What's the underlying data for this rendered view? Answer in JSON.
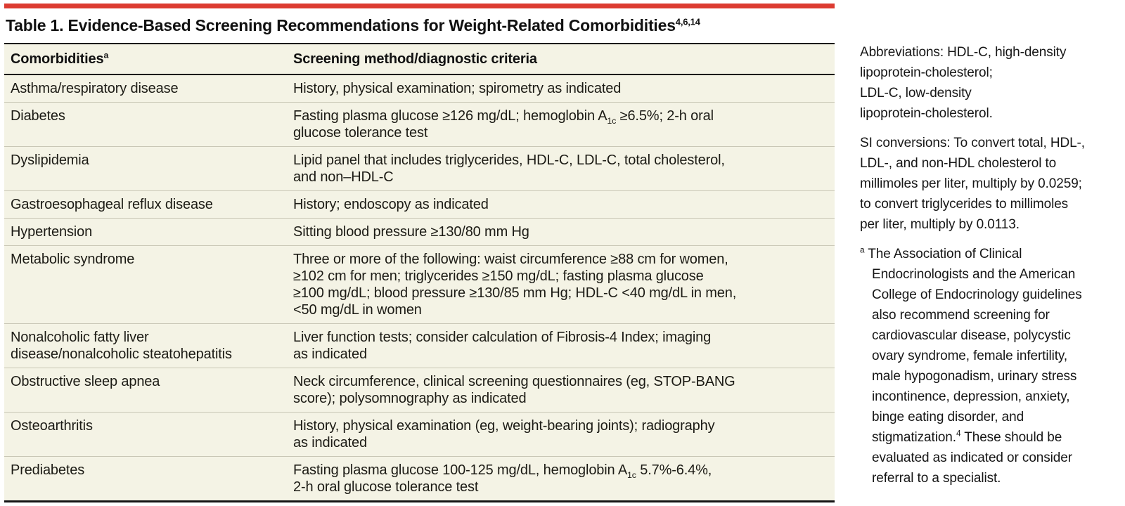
{
  "accent_color": "#dc3b31",
  "table_background": "#f4f3e5",
  "title": "Table 1. Evidence-Based Screening Recommendations for Weight-Related Comorbidities^4,6,14^",
  "table": {
    "header": {
      "comorbidities": "Comorbidities^a^",
      "screening": "Screening method/diagnostic criteria"
    },
    "rows": [
      {
        "label": "Asthma/respiratory disease",
        "value": "History, physical examination; spirometry as indicated"
      },
      {
        "label": "Diabetes",
        "value": "Fasting plasma glucose ≥126 mg/dL; hemoglobin A~1c~ ≥6.5%; 2-h oral\nglucose tolerance test"
      },
      {
        "label": "Dyslipidemia",
        "value": "Lipid panel that includes triglycerides, HDL-C, LDL-C, total cholesterol,\nand non–HDL-C"
      },
      {
        "label": "Gastroesophageal reflux disease",
        "value": "History; endoscopy as indicated"
      },
      {
        "label": "Hypertension",
        "value": "Sitting blood pressure ≥130/80 mm Hg"
      },
      {
        "label": "Metabolic syndrome",
        "value": "Three or more of the following: waist circumference ≥88 cm for women,\n≥102 cm for men; triglycerides ≥150 mg/dL; fasting plasma glucose\n≥100 mg/dL; blood pressure ≥130/85 mm Hg; HDL-C <40 mg/dL in men,\n<50 mg/dL in women"
      },
      {
        "label": "Nonalcoholic fatty liver\ndisease/nonalcoholic steatohepatitis",
        "value": "Liver function tests; consider calculation of Fibrosis-4 Index; imaging\nas indicated"
      },
      {
        "label": "Obstructive sleep apnea",
        "value": "Neck circumference, clinical screening questionnaires (eg, STOP-BANG\nscore); polysomnography as indicated"
      },
      {
        "label": "Osteoarthritis",
        "value": "History, physical examination (eg, weight-bearing joints); radiography\nas indicated"
      },
      {
        "label": "Prediabetes",
        "value": "Fasting plasma glucose 100-125 mg/dL, hemoglobin A~1c~ 5.7%-6.4%,\n2-h oral glucose tolerance test"
      }
    ]
  },
  "notes": {
    "abbreviations": "Abbreviations: HDL-C, high-density\nlipoprotein-cholesterol;\nLDL-C, low-density\nlipoprotein-cholesterol.",
    "si_conversions": "SI conversions: To convert total, HDL-,\nLDL-, and non-HDL cholesterol to\nmillimoles per liter, multiply by 0.0259;\nto convert triglycerides to millimoles\nper liter, multiply by 0.0113.",
    "footnote_a": "^a^ The Association of Clinical\nEndocrinologists and the American\nCollege of Endocrinology guidelines\nalso recommend screening for\ncardiovascular disease, polycystic\novary syndrome, female infertility,\nmale hypogonadism, urinary stress\nincontinence, depression, anxiety,\nbinge eating disorder, and\nstigmatization.^4^ These should be\nevaluated as indicated or consider\nreferral to a specialist."
  }
}
